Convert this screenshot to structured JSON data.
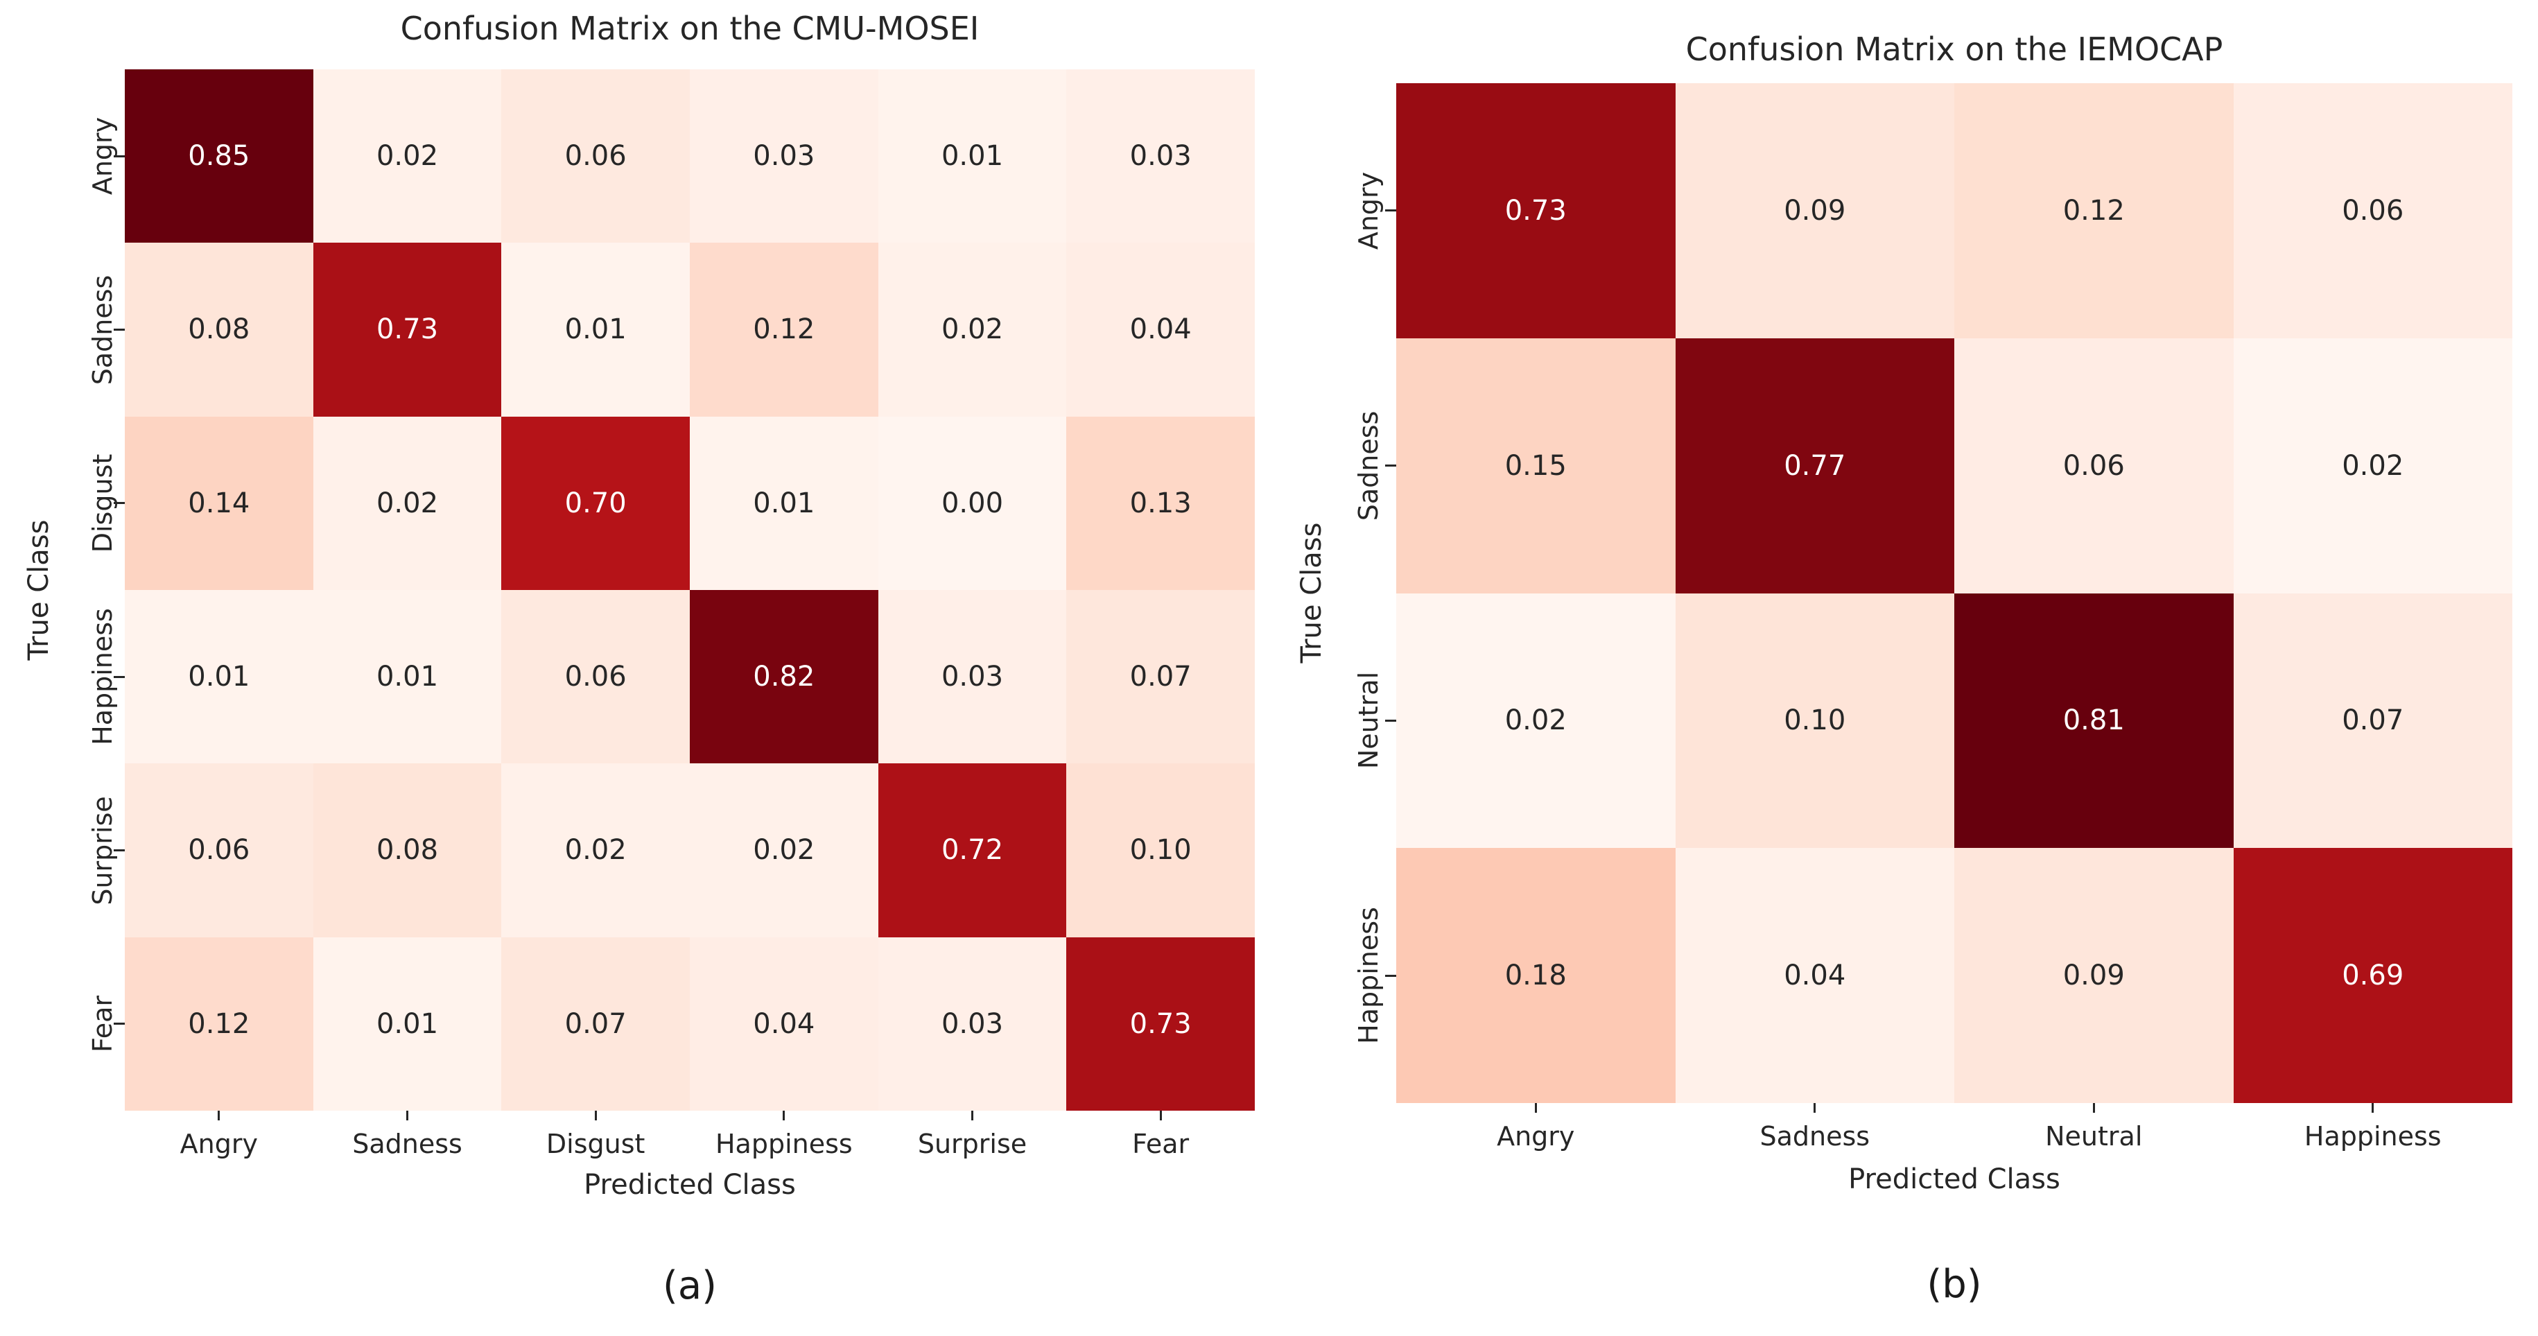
{
  "figure": {
    "background": "#ffffff",
    "text_color": "#262626",
    "annot_light_text": "#ffffff",
    "colormap": {
      "name": "Reds",
      "stops": [
        "#fff5f0",
        "#fee0d2",
        "#fcbba1",
        "#fc9272",
        "#fb6a4a",
        "#ef3b2c",
        "#cb181d",
        "#a50f15",
        "#67000d"
      ]
    }
  },
  "chart_data": [
    {
      "type": "heatmap",
      "title": "Confusion Matrix on the CMU-MOSEI",
      "xlabel": "Predicted Class",
      "ylabel": "True Class",
      "caption": "(a)",
      "x_tick_labels": [
        "Angry",
        "Sadness",
        "Disgust",
        "Happiness",
        "Surprise",
        "Fear"
      ],
      "y_tick_labels": [
        "Angry",
        "Sadness",
        "Disgust",
        "Happiness",
        "Surprise",
        "Fear"
      ],
      "values": [
        [
          0.85,
          0.02,
          0.06,
          0.03,
          0.01,
          0.03
        ],
        [
          0.08,
          0.73,
          0.01,
          0.12,
          0.02,
          0.04
        ],
        [
          0.14,
          0.02,
          0.7,
          0.01,
          0.0,
          0.13
        ],
        [
          0.01,
          0.01,
          0.06,
          0.82,
          0.03,
          0.07
        ],
        [
          0.06,
          0.08,
          0.02,
          0.02,
          0.72,
          0.1
        ],
        [
          0.12,
          0.01,
          0.07,
          0.04,
          0.03,
          0.73
        ]
      ],
      "vmin": 0.0,
      "vmax": 0.85,
      "grid": false,
      "legend": "none"
    },
    {
      "type": "heatmap",
      "title": "Confusion Matrix on the IEMOCAP",
      "xlabel": "Predicted Class",
      "ylabel": "True Class",
      "caption": "(b)",
      "x_tick_labels": [
        "Angry",
        "Sadness",
        "Neutral",
        "Happiness"
      ],
      "y_tick_labels": [
        "Angry",
        "Sadness",
        "Neutral",
        "Happiness"
      ],
      "values": [
        [
          0.73,
          0.09,
          0.12,
          0.06
        ],
        [
          0.15,
          0.77,
          0.06,
          0.02
        ],
        [
          0.02,
          0.1,
          0.81,
          0.07
        ],
        [
          0.18,
          0.04,
          0.09,
          0.69
        ]
      ],
      "vmin": 0.02,
      "vmax": 0.81,
      "grid": false,
      "legend": "none"
    }
  ]
}
